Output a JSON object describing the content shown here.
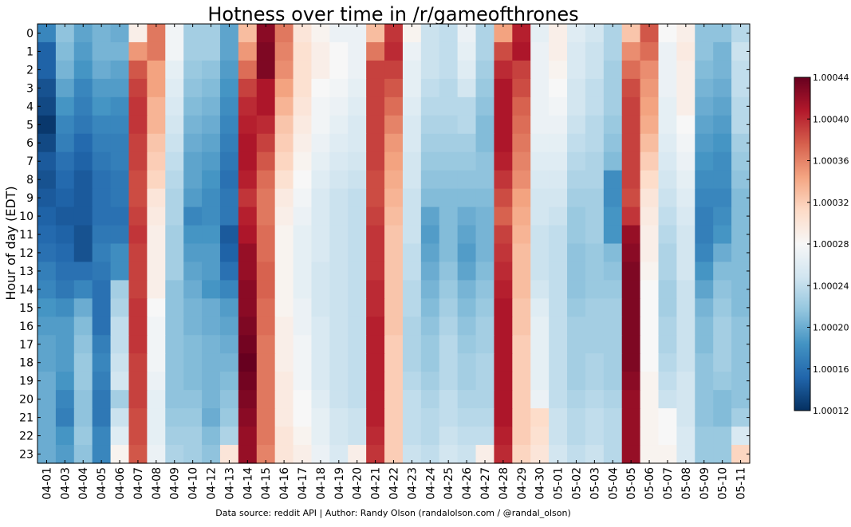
{
  "chart_data": {
    "type": "heatmap",
    "title": "Hotness over time in /r/gameofthrones",
    "xlabel": "",
    "ylabel": "Hour of day (EDT)",
    "footer": "Data source: reddit API | Author: Randy Olson (randalolson.com / @randal_olson)",
    "x_categories": [
      "04-01",
      "04-03",
      "04-04",
      "04-05",
      "04-06",
      "04-07",
      "04-08",
      "04-09",
      "04-10",
      "04-12",
      "04-13",
      "04-14",
      "04-15",
      "04-16",
      "04-17",
      "04-18",
      "04-19",
      "04-20",
      "04-21",
      "04-22",
      "04-23",
      "04-24",
      "04-25",
      "04-26",
      "04-27",
      "04-28",
      "04-29",
      "04-30",
      "05-01",
      "05-02",
      "05-03",
      "05-04",
      "05-05",
      "05-06",
      "05-07",
      "05-08",
      "05-09",
      "05-10",
      "05-11"
    ],
    "y_categories": [
      "0",
      "1",
      "2",
      "3",
      "4",
      "5",
      "6",
      "7",
      "8",
      "9",
      "10",
      "11",
      "12",
      "13",
      "14",
      "15",
      "16",
      "17",
      "18",
      "19",
      "20",
      "21",
      "22",
      "23"
    ],
    "colorbar": {
      "min": 1.00012,
      "max": 1.00044,
      "ticks": [
        "1.00012",
        "1.00016",
        "1.00020",
        "1.00024",
        "1.00028",
        "1.00032",
        "1.00036",
        "1.00040",
        "1.00044"
      ],
      "colormap": "RdBu_r"
    },
    "cell_values": [
      [
        1.000175,
        1.000215,
        1.000195,
        1.000205,
        1.0002,
        1.00029,
        1.000365,
        1.000275,
        1.000225,
        1.000225,
        1.000195,
        1.00033,
        1.000425,
        1.000365,
        1.0003,
        1.000285,
        1.00027,
        1.00027,
        1.00033,
        1.000395,
        1.000285,
        1.000245,
        1.00024,
        1.00027,
        1.00023,
        1.000345,
        1.000405,
        1.000265,
        1.00029,
        1.00026,
        1.00025,
        1.00023,
        1.000325,
        1.00038,
        1.00028,
        1.00029,
        1.000215,
        1.000215,
        1.000235
      ],
      [
        1.00015,
        1.00021,
        1.00019,
        1.000205,
        1.000205,
        1.00035,
        1.000365,
        1.000275,
        1.000225,
        1.000225,
        1.000195,
        1.00035,
        1.00043,
        1.00036,
        1.000305,
        1.00029,
        1.00028,
        1.00027,
        1.000365,
        1.0004,
        1.00027,
        1.000245,
        1.00024,
        1.000265,
        1.00023,
        1.000385,
        1.00041,
        1.00027,
        1.00029,
        1.000255,
        1.000245,
        1.00023,
        1.000355,
        1.00037,
        1.00027,
        1.000295,
        1.000215,
        1.000205,
        1.000245
      ],
      [
        1.00015,
        1.000205,
        1.000185,
        1.0002,
        1.000195,
        1.00038,
        1.000345,
        1.000265,
        1.00022,
        1.000215,
        1.00019,
        1.00037,
        1.00043,
        1.000355,
        1.000305,
        1.00029,
        1.00028,
        1.00027,
        1.00039,
        1.00039,
        1.000265,
        1.000245,
        1.00024,
        1.00026,
        1.000225,
        1.0004,
        1.00039,
        1.00027,
        1.000285,
        1.000255,
        1.000245,
        1.000225,
        1.00037,
        1.000355,
        1.00027,
        1.00029,
        1.00021,
        1.000205,
        1.00024
      ],
      [
        1.00014,
        1.000195,
        1.000175,
        1.00019,
        1.00019,
        1.00039,
        1.000345,
        1.00026,
        1.000215,
        1.00021,
        1.000185,
        1.00039,
        1.00041,
        1.000345,
        1.000305,
        1.00028,
        1.000275,
        1.000265,
        1.00039,
        1.00038,
        1.000265,
        1.00024,
        1.000235,
        1.00025,
        1.00022,
        1.00041,
        1.000385,
        1.00027,
        1.00028,
        1.00025,
        1.00024,
        1.000225,
        1.000385,
        1.00035,
        1.00027,
        1.00029,
        1.000205,
        1.0002,
        1.00024
      ],
      [
        1.000135,
        1.000185,
        1.00017,
        1.000185,
        1.00018,
        1.000395,
        1.000335,
        1.000255,
        1.00021,
        1.000205,
        1.00018,
        1.0004,
        1.00041,
        1.000335,
        1.0003,
        1.000275,
        1.00027,
        1.00026,
        1.00039,
        1.00037,
        1.00026,
        1.000235,
        1.000235,
        1.000235,
        1.000215,
        1.00041,
        1.000375,
        1.00027,
        1.000275,
        1.00025,
        1.00024,
        1.000225,
        1.00039,
        1.000345,
        1.000265,
        1.00029,
        1.0002,
        1.000195,
        1.000235
      ],
      [
        1.000125,
        1.000175,
        1.000165,
        1.000175,
        1.000175,
        1.000395,
        1.000335,
        1.00025,
        1.000205,
        1.0002,
        1.000175,
        1.000405,
        1.0004,
        1.000325,
        1.000295,
        1.000275,
        1.000265,
        1.000255,
        1.00039,
        1.00036,
        1.000255,
        1.00023,
        1.00023,
        1.000235,
        1.00021,
        1.00041,
        1.00037,
        1.00027,
        1.00027,
        1.000245,
        1.000235,
        1.00022,
        1.00039,
        1.00034,
        1.000265,
        1.00028,
        1.000195,
        1.00019,
        1.000235
      ],
      [
        1.000135,
        1.00017,
        1.000155,
        1.00017,
        1.00017,
        1.00039,
        1.000325,
        1.000245,
        1.0002,
        1.000195,
        1.00017,
        1.00041,
        1.00039,
        1.00032,
        1.00029,
        1.00027,
        1.00026,
        1.000255,
        1.00039,
        1.00035,
        1.000255,
        1.000225,
        1.000225,
        1.000225,
        1.00021,
        1.00041,
        1.000365,
        1.000265,
        1.000265,
        1.00024,
        1.000235,
        1.000215,
        1.00039,
        1.00033,
        1.00026,
        1.000275,
        1.00019,
        1.000185,
        1.000225
      ],
      [
        1.000145,
        1.00016,
        1.00015,
        1.000165,
        1.00017,
        1.00039,
        1.00032,
        1.00024,
        1.000195,
        1.00019,
        1.000165,
        1.00041,
        1.00038,
        1.000315,
        1.000285,
        1.000265,
        1.000255,
        1.00025,
        1.00039,
        1.000345,
        1.00025,
        1.00022,
        1.00022,
        1.00022,
        1.000215,
        1.000405,
        1.00036,
        1.00026,
        1.00026,
        1.000235,
        1.00023,
        1.00021,
        1.00039,
        1.00032,
        1.000255,
        1.00027,
        1.000185,
        1.00018,
        1.00022
      ],
      [
        1.00014,
        1.000155,
        1.000145,
        1.00016,
        1.000165,
        1.000385,
        1.000315,
        1.000235,
        1.000195,
        1.000185,
        1.00016,
        1.000405,
        1.00037,
        1.000305,
        1.00028,
        1.00026,
        1.00025,
        1.000245,
        1.000385,
        1.00034,
        1.00025,
        1.000215,
        1.000215,
        1.000215,
        1.000215,
        1.000395,
        1.000355,
        1.000255,
        1.000255,
        1.00023,
        1.00023,
        1.00018,
        1.00039,
        1.00031,
        1.00025,
        1.000265,
        1.00018,
        1.00018,
        1.000215
      ],
      [
        1.000145,
        1.00015,
        1.000145,
        1.00016,
        1.000165,
        1.000385,
        1.0003,
        1.00023,
        1.00019,
        1.00018,
        1.000165,
        1.000395,
        1.000365,
        1.000295,
        1.000275,
        1.000255,
        1.000245,
        1.00024,
        1.000385,
        1.000335,
        1.000245,
        1.00021,
        1.00021,
        1.00021,
        1.00021,
        1.000385,
        1.000345,
        1.00025,
        1.00025,
        1.000225,
        1.000225,
        1.00018,
        1.000385,
        1.0003,
        1.000245,
        1.00026,
        1.000175,
        1.000175,
        1.00021
      ],
      [
        1.00015,
        1.000145,
        1.000145,
        1.00016,
        1.00016,
        1.00039,
        1.000295,
        1.00023,
        1.000175,
        1.00018,
        1.000165,
        1.000405,
        1.000365,
        1.00029,
        1.00027,
        1.000255,
        1.000245,
        1.00024,
        1.00039,
        1.00033,
        1.000245,
        1.000195,
        1.00021,
        1.0002,
        1.000205,
        1.000375,
        1.00034,
        1.00025,
        1.000245,
        1.00022,
        1.000225,
        1.000185,
        1.000395,
        1.000295,
        1.00024,
        1.000255,
        1.00017,
        1.00018,
        1.00021
      ],
      [
        1.000155,
        1.00015,
        1.00014,
        1.000165,
        1.000165,
        1.000395,
        1.00029,
        1.000225,
        1.000185,
        1.000185,
        1.000145,
        1.00041,
        1.00037,
        1.000285,
        1.000265,
        1.000255,
        1.000245,
        1.00024,
        1.000395,
        1.000325,
        1.000245,
        1.00019,
        1.00021,
        1.000195,
        1.000205,
        1.00039,
        1.000335,
        1.000245,
        1.00024,
        1.00022,
        1.000225,
        1.000185,
        1.00042,
        1.00029,
        1.000235,
        1.00025,
        1.00017,
        1.000185,
        1.00021
      ],
      [
        1.00016,
        1.000155,
        1.00014,
        1.00017,
        1.00018,
        1.00039,
        1.00029,
        1.000225,
        1.00019,
        1.00019,
        1.00015,
        1.00042,
        1.00037,
        1.000285,
        1.000265,
        1.000255,
        1.000245,
        1.00024,
        1.000395,
        1.000325,
        1.00024,
        1.000195,
        1.00021,
        1.00019,
        1.000205,
        1.000395,
        1.00033,
        1.000245,
        1.00024,
        1.000215,
        1.00022,
        1.00021,
        1.000425,
        1.00029,
        1.00023,
        1.00025,
        1.000175,
        1.0002,
        1.00021
      ],
      [
        1.00017,
        1.00016,
        1.00016,
        1.000165,
        1.00018,
        1.00039,
        1.00029,
        1.000225,
        1.000195,
        1.00019,
        1.00016,
        1.00042,
        1.000375,
        1.000285,
        1.000265,
        1.00025,
        1.000245,
        1.00024,
        1.000395,
        1.000325,
        1.00024,
        1.0002,
        1.000215,
        1.000195,
        1.00021,
        1.0004,
        1.00033,
        1.000245,
        1.00024,
        1.000215,
        1.00022,
        1.000215,
        1.00043,
        1.000285,
        1.00023,
        1.00025,
        1.000185,
        1.00021,
        1.00021
      ],
      [
        1.000175,
        1.000165,
        1.000175,
        1.00016,
        1.000225,
        1.00039,
        1.00029,
        1.000215,
        1.0002,
        1.000185,
        1.000175,
        1.000425,
        1.000375,
        1.000285,
        1.000265,
        1.00025,
        1.000245,
        1.00024,
        1.0004,
        1.000325,
        1.000235,
        1.000205,
        1.00022,
        1.000205,
        1.000215,
        1.000405,
        1.00033,
        1.00025,
        1.00024,
        1.000215,
        1.00022,
        1.00022,
        1.00043,
        1.00028,
        1.000225,
        1.000245,
        1.000195,
        1.000215,
        1.00021
      ],
      [
        1.000185,
        1.00018,
        1.0002,
        1.00016,
        1.00023,
        1.000395,
        1.00028,
        1.000215,
        1.000205,
        1.0002,
        1.00019,
        1.000425,
        1.00037,
        1.000285,
        1.00027,
        1.00025,
        1.000245,
        1.00024,
        1.0004,
        1.000325,
        1.000235,
        1.00021,
        1.000225,
        1.00021,
        1.00022,
        1.00041,
        1.000325,
        1.00026,
        1.00024,
        1.00022,
        1.000225,
        1.000225,
        1.00043,
        1.00028,
        1.000225,
        1.000245,
        1.000205,
        1.00022,
        1.00021
      ],
      [
        1.00019,
        1.00019,
        1.00021,
        1.00016,
        1.00024,
        1.000395,
        1.000275,
        1.000215,
        1.000205,
        1.0002,
        1.000195,
        1.00043,
        1.00037,
        1.00029,
        1.00027,
        1.000255,
        1.000245,
        1.00024,
        1.000405,
        1.000325,
        1.00023,
        1.000215,
        1.00023,
        1.000215,
        1.000225,
        1.00041,
        1.000325,
        1.000265,
        1.00024,
        1.000225,
        1.000225,
        1.000225,
        1.00043,
        1.00028,
        1.00023,
        1.000245,
        1.00021,
        1.000225,
        1.000215
      ],
      [
        1.000195,
        1.00019,
        1.000215,
        1.00017,
        1.00024,
        1.000395,
        1.000275,
        1.000215,
        1.00021,
        1.000205,
        1.0002,
        1.000435,
        1.000365,
        1.00029,
        1.000275,
        1.000255,
        1.000245,
        1.00024,
        1.000405,
        1.00032,
        1.00023,
        1.00022,
        1.000235,
        1.00022,
        1.000225,
        1.00041,
        1.00032,
        1.000265,
        1.00024,
        1.000225,
        1.000225,
        1.000225,
        1.00043,
        1.00028,
        1.00023,
        1.000245,
        1.00021,
        1.000225,
        1.000215
      ],
      [
        1.000195,
        1.00019,
        1.00022,
        1.000175,
        1.000245,
        1.00039,
        1.000275,
        1.000215,
        1.00021,
        1.000205,
        1.000205,
        1.00044,
        1.000365,
        1.00029,
        1.000275,
        1.000255,
        1.000245,
        1.00024,
        1.000405,
        1.00032,
        1.00023,
        1.00022,
        1.000235,
        1.000225,
        1.00023,
        1.00041,
        1.00032,
        1.000265,
        1.00024,
        1.000225,
        1.00023,
        1.000225,
        1.00043,
        1.00028,
        1.000235,
        1.000245,
        1.000215,
        1.000225,
        1.000215
      ],
      [
        1.0002,
        1.000185,
        1.00022,
        1.00017,
        1.00025,
        1.00039,
        1.00027,
        1.000215,
        1.00021,
        1.000205,
        1.00021,
        1.000435,
        1.000365,
        1.000295,
        1.000275,
        1.000255,
        1.000245,
        1.00024,
        1.000405,
        1.00032,
        1.000235,
        1.000225,
        1.000235,
        1.000225,
        1.00023,
        1.00041,
        1.00032,
        1.000265,
        1.00024,
        1.000225,
        1.00023,
        1.000225,
        1.000425,
        1.000285,
        1.00024,
        1.00025,
        1.000215,
        1.00022,
        1.000215
      ],
      [
        1.0002,
        1.000175,
        1.000215,
        1.000165,
        1.000225,
        1.00039,
        1.000265,
        1.000215,
        1.000215,
        1.000205,
        1.000215,
        1.00043,
        1.000365,
        1.000295,
        1.00028,
        1.00026,
        1.000245,
        1.00024,
        1.000405,
        1.00032,
        1.00024,
        1.00023,
        1.00024,
        1.00023,
        1.00023,
        1.00041,
        1.00032,
        1.00027,
        1.00024,
        1.00023,
        1.000235,
        1.00023,
        1.00042,
        1.000285,
        1.000245,
        1.00025,
        1.000215,
        1.00021,
        1.000215
      ],
      [
        1.0002,
        1.00017,
        1.000215,
        1.000165,
        1.000245,
        1.000385,
        1.000265,
        1.00022,
        1.00022,
        1.0002,
        1.00022,
        1.000425,
        1.000365,
        1.000295,
        1.00028,
        1.000265,
        1.00025,
        1.000245,
        1.000405,
        1.00032,
        1.00024,
        1.000235,
        1.00024,
        1.000235,
        1.000235,
        1.00041,
        1.00032,
        1.00031,
        1.000245,
        1.000235,
        1.00024,
        1.000235,
        1.00042,
        1.000285,
        1.00028,
        1.00025,
        1.000215,
        1.00021,
        1.000225
      ],
      [
        1.0002,
        1.000185,
        1.00022,
        1.000175,
        1.00026,
        1.000385,
        1.000265,
        1.000225,
        1.000225,
        1.00021,
        1.00023,
        1.00042,
        1.000365,
        1.0003,
        1.000285,
        1.000265,
        1.00025,
        1.000245,
        1.0004,
        1.00032,
        1.00024,
        1.000235,
        1.000245,
        1.00024,
        1.00024,
        1.000405,
        1.00032,
        1.000305,
        1.000245,
        1.000235,
        1.00024,
        1.000235,
        1.00042,
        1.000285,
        1.00028,
        1.000255,
        1.00022,
        1.00022,
        1.000255
      ],
      [
        1.0002,
        1.00019,
        1.000215,
        1.000175,
        1.000285,
        1.00038,
        1.00027,
        1.00023,
        1.000225,
        1.000215,
        1.0003,
        1.00042,
        1.00036,
        1.0003,
        1.00029,
        1.00027,
        1.000255,
        1.00029,
        1.000395,
        1.00032,
        1.000245,
        1.00024,
        1.00025,
        1.000245,
        1.00029,
        1.0004,
        1.000315,
        1.0003,
        1.00025,
        1.00024,
        1.000245,
        1.000235,
        1.00042,
        1.000285,
        1.000285,
        1.000255,
        1.00022,
        1.00022,
        1.000315
      ]
    ]
  }
}
